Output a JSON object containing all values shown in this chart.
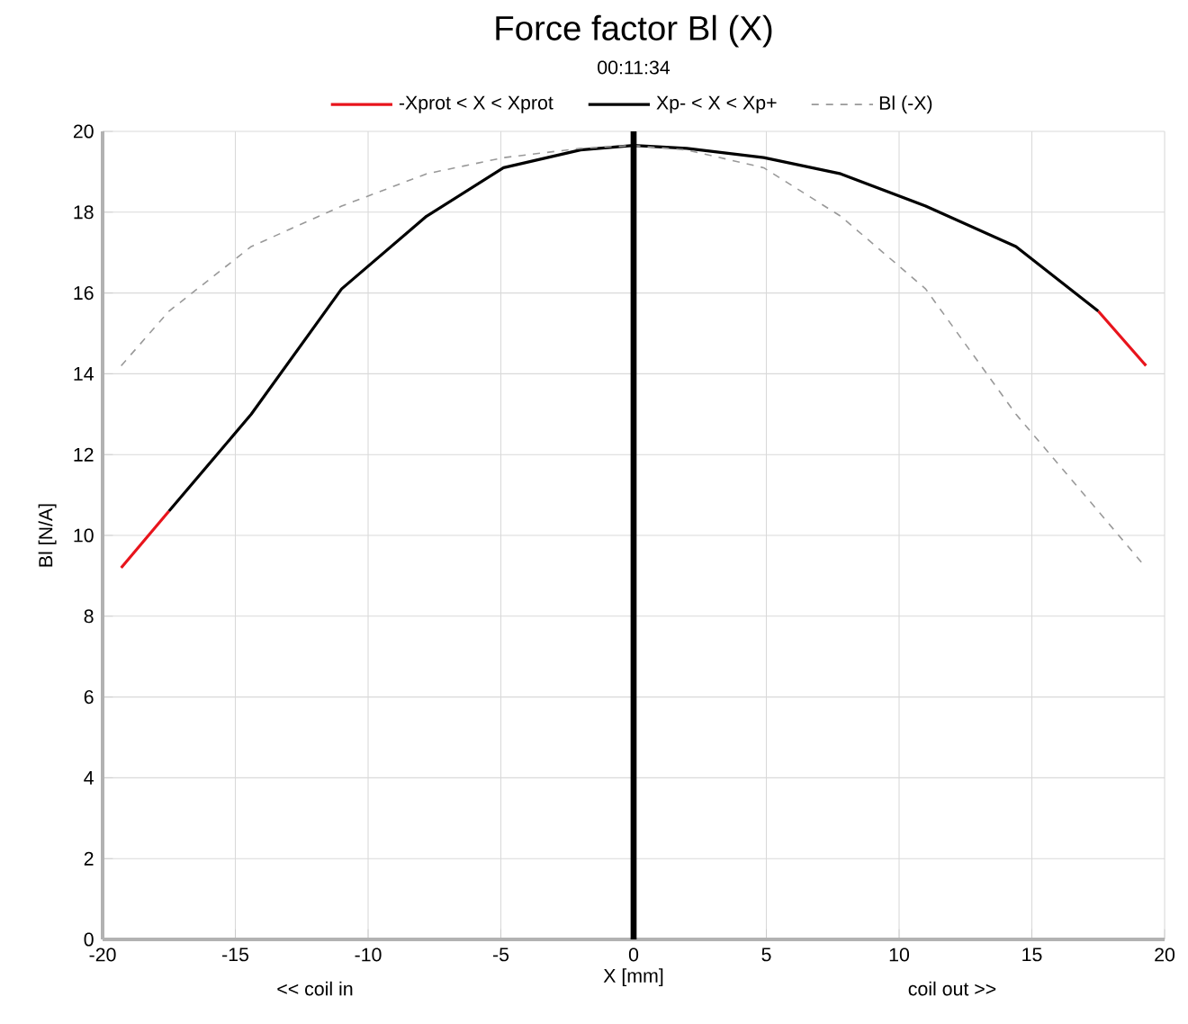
{
  "chart_data": {
    "type": "line",
    "title": "Force factor Bl (X)",
    "subtitle": "00:11:34",
    "xlabel": "X [mm]",
    "ylabel": "Bl [N/A]",
    "annotations": [
      "<< coil in",
      "coil out >>"
    ],
    "x": [
      -19.3,
      -17.5,
      -14.4,
      -11,
      -7.8,
      -4.9,
      -2,
      0,
      2,
      4.9,
      7.8,
      11,
      14.4,
      17.5,
      19.3
    ],
    "series": [
      {
        "name": "-Xprot < X < Xprot",
        "color": "#e8141c",
        "line_style": "solid",
        "values": [
          9.2,
          10.6,
          null,
          null,
          null,
          null,
          null,
          null,
          null,
          null,
          null,
          null,
          null,
          15.55,
          14.2
        ]
      },
      {
        "name": "Xp- < X < Xp+",
        "color": "#000000",
        "line_style": "solid",
        "x": [
          -17.5,
          -14.4,
          -11,
          -7.8,
          -4.9,
          -2,
          0,
          2,
          4.9,
          7.8,
          11,
          14.4,
          17.5
        ],
        "values": [
          10.6,
          13.0,
          16.1,
          17.9,
          19.1,
          19.54,
          19.65,
          19.58,
          19.35,
          18.95,
          18.15,
          17.15,
          15.55
        ]
      },
      {
        "name": "Bl (-X)",
        "color": "#999999",
        "line_style": "dashed",
        "values": [
          14.2,
          15.55,
          17.15,
          18.15,
          18.95,
          19.35,
          19.58,
          19.65,
          19.54,
          19.1,
          17.9,
          16.1,
          13.0,
          10.6,
          9.2
        ]
      }
    ],
    "xlim": [
      -20,
      20
    ],
    "xticks": [
      -20,
      -15,
      -10,
      -5,
      0,
      5,
      10,
      15,
      20
    ],
    "ylim": [
      0,
      20
    ],
    "yticks": [
      0,
      2,
      4,
      6,
      8,
      10,
      12,
      14,
      16,
      18,
      20
    ],
    "ref_lines": [
      {
        "axis": "x",
        "value": 0,
        "color": "#000000"
      }
    ],
    "grid": true,
    "legend": "top",
    "marker": "none"
  }
}
